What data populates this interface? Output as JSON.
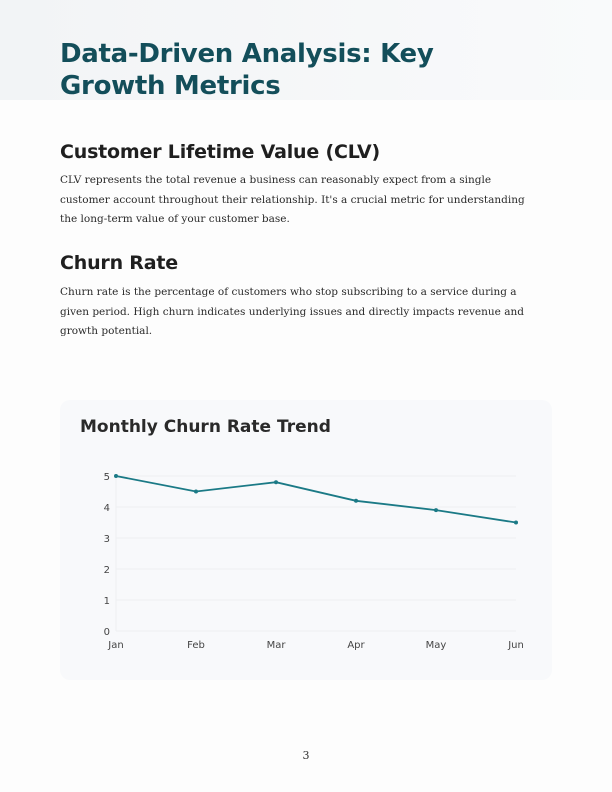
{
  "title": "Data-Driven Analysis: Key Growth Metrics",
  "sections": [
    {
      "heading": "Customer Lifetime Value (CLV)",
      "body": "CLV represents the total revenue a business can reasonably expect from a single customer account throughout their relationship. It's a crucial metric for understanding the long-term value of your customer base."
    },
    {
      "heading": "Churn Rate",
      "body": "Churn rate is the percentage of customers who stop subscribing to a service during a given period. High churn indicates underlying issues and directly impacts revenue and growth potential."
    }
  ],
  "chart_data": {
    "type": "line",
    "title": "Monthly Churn Rate Trend",
    "categories": [
      "Jan",
      "Feb",
      "Mar",
      "Apr",
      "May",
      "Jun"
    ],
    "series": [
      {
        "values": [
          5.0,
          4.5,
          4.8,
          4.2,
          3.9,
          3.5
        ],
        "color": "#1b7a86"
      }
    ],
    "yticks": [
      0,
      1,
      2,
      3,
      4,
      5
    ],
    "ylim": [
      0,
      5
    ],
    "grid": true,
    "xlabel": "",
    "ylabel": ""
  },
  "page_number": "3"
}
